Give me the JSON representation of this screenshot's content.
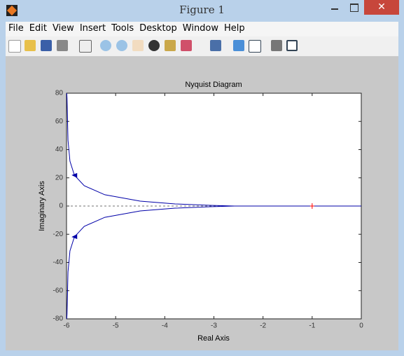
{
  "window": {
    "title": "Figure 1"
  },
  "menu": [
    "File",
    "Edit",
    "View",
    "Insert",
    "Tools",
    "Desktop",
    "Window",
    "Help"
  ],
  "chart_data": {
    "type": "line",
    "title": "Nyquist Diagram",
    "x_label": "Real Axis",
    "y_label": "Imaginary Axis",
    "x": [
      -5.995,
      -5.99,
      -5.97,
      -5.93,
      -5.84,
      -5.64,
      -5.22,
      -4.5,
      -3.79,
      -3.08,
      -2.58,
      0
    ],
    "series": [
      {
        "color": "#0000a8",
        "values": [
          80,
          76.5,
          46.7,
          31.8,
          21.9,
          14.4,
          8,
          3.5,
          1.5,
          0.5,
          0,
          0
        ]
      },
      {
        "color": "#0000a8",
        "values": [
          -80,
          -76.5,
          -46.7,
          -31.8,
          -21.9,
          -14.4,
          -8,
          -3.5,
          -1.5,
          -0.5,
          0,
          0
        ]
      }
    ],
    "critical_point": {
      "x": -1,
      "y": 0,
      "color": "#ff0000"
    },
    "xlim": [
      -6,
      0
    ],
    "xticks": [
      -6,
      -5,
      -4,
      -3,
      -2,
      -1,
      0
    ],
    "ylim": [
      -80,
      80
    ],
    "yticks": [
      -80,
      -60,
      -40,
      -20,
      0,
      20,
      40,
      60,
      80
    ]
  }
}
